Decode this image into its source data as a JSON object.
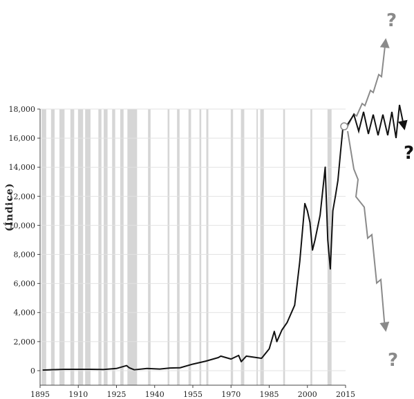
{
  "chart_data": {
    "type": "line",
    "ylabel": "(Índice)",
    "xlabel": "",
    "xlim": [
      1895,
      2015
    ],
    "ylim": [
      -1000,
      18000
    ],
    "y_ticks": [
      0,
      2000,
      4000,
      6000,
      8000,
      10000,
      12000,
      14000,
      16000,
      18000
    ],
    "y_tick_labels": [
      "0",
      "2,000",
      "4,000",
      "6,000",
      "8,000",
      "10,000",
      "12,000",
      "14,000",
      "16,000",
      "18,000"
    ],
    "x_ticks": [
      1895,
      1910,
      1925,
      1940,
      1955,
      1970,
      1985,
      2000,
      2015
    ],
    "x_tick_labels": [
      "1895",
      "1910",
      "1925",
      "1940",
      "1955",
      "1970",
      "1985",
      "2000",
      "2015"
    ],
    "grid": true,
    "series": [
      {
        "color": "#111111",
        "x": [
          1896,
          1900,
          1905,
          1910,
          1915,
          1920,
          1925,
          1929,
          1930,
          1932,
          1937,
          1942,
          1946,
          1950,
          1955,
          1960,
          1965,
          1966,
          1970,
          1973,
          1974,
          1976,
          1980,
          1982,
          1985,
          1987,
          1988,
          1990,
          1992,
          1995,
          1997,
          1999,
          2000,
          2001,
          2002,
          2003,
          2005,
          2007,
          2008,
          2009,
          2010,
          2011,
          2012,
          2013,
          2014
        ],
        "values": [
          40,
          70,
          90,
          90,
          90,
          80,
          150,
          350,
          200,
          60,
          150,
          110,
          180,
          200,
          450,
          650,
          900,
          1000,
          800,
          1050,
          620,
          1000,
          900,
          850,
          1500,
          2700,
          2000,
          2800,
          3300,
          4500,
          7500,
          11500,
          11000,
          10200,
          8300,
          9000,
          10700,
          14000,
          9000,
          7000,
          11000,
          12000,
          13100,
          15000,
          16800
        ]
      }
    ],
    "recession_bands": [
      [
        1895.6,
        1897.4
      ],
      [
        1899.3,
        1900.7
      ],
      [
        1902.6,
        1904.6
      ],
      [
        1906.9,
        1908.4
      ],
      [
        1909.9,
        1911.9
      ],
      [
        1912.7,
        1914.8
      ],
      [
        1917.9,
        1919.1
      ],
      [
        1920.0,
        1921.5
      ],
      [
        1923.3,
        1924.5
      ],
      [
        1926.5,
        1927.8
      ],
      [
        1929.3,
        1933.1
      ],
      [
        1937.4,
        1938.4
      ],
      [
        1945.1,
        1945.8
      ],
      [
        1948.8,
        1949.8
      ],
      [
        1953.3,
        1954.3
      ],
      [
        1957.6,
        1958.3
      ],
      [
        1960.3,
        1961.1
      ],
      [
        1969.9,
        1970.8
      ],
      [
        1973.9,
        1975.2
      ],
      [
        1980.0,
        1980.5
      ],
      [
        1981.5,
        1982.9
      ],
      [
        1990.5,
        1991.2
      ],
      [
        2001.2,
        2001.9
      ],
      [
        2007.9,
        2009.5
      ]
    ],
    "annotations": {
      "start_marker": {
        "x": 2014.8,
        "y": 16800
      },
      "scenarios": [
        {
          "label": "?",
          "color": "#8a8a8a"
        },
        {
          "label": "?",
          "color": "#111111"
        },
        {
          "label": "?",
          "color": "#8a8a8a"
        }
      ]
    }
  }
}
